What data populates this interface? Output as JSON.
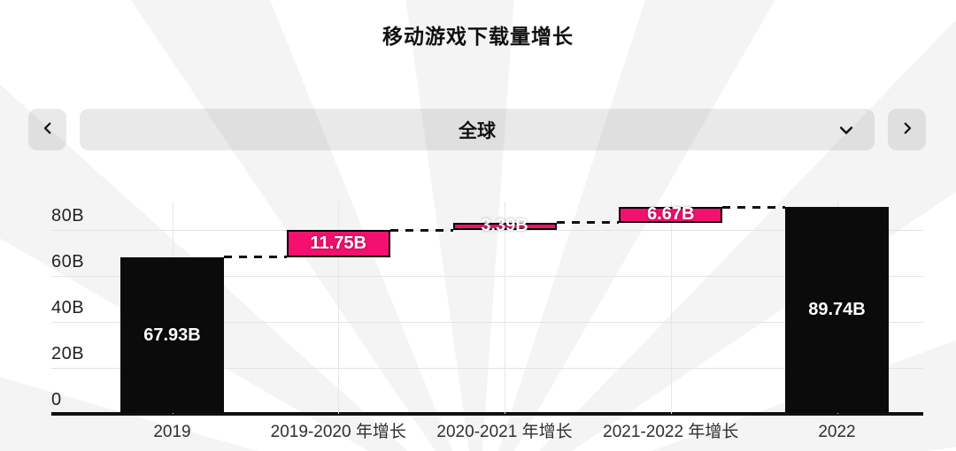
{
  "title": "移动游戏下载量增长",
  "selector": {
    "value": "全球",
    "prev_icon": "chevron-left",
    "next_icon": "chevron-right",
    "dropdown_icon": "chevron-down"
  },
  "chart_data": {
    "type": "bar",
    "subtype": "waterfall",
    "title": "移动游戏下载量增长",
    "unit": "B",
    "ylim": [
      0,
      92
    ],
    "grid": true,
    "legend": "none",
    "yticks": [
      {
        "value": 0,
        "label": "0"
      },
      {
        "value": 20,
        "label": "20B"
      },
      {
        "value": 40,
        "label": "40B"
      },
      {
        "value": 60,
        "label": "60B"
      },
      {
        "value": 80,
        "label": "80B"
      }
    ],
    "categories": [
      "2019",
      "2019-2020 年增长",
      "2020-2021 年增长",
      "2021-2022 年增长",
      "2022"
    ],
    "columns": [
      {
        "category": "2019",
        "kind": "total",
        "value": 67.93,
        "label": "67.93B"
      },
      {
        "category": "2019-2020 年增长",
        "kind": "delta",
        "value": 11.75,
        "label": "11.75B"
      },
      {
        "category": "2020-2021 年增长",
        "kind": "delta",
        "value": 3.39,
        "label": "3.39B"
      },
      {
        "category": "2021-2022 年增长",
        "kind": "delta",
        "value": 6.67,
        "label": "6.67B"
      },
      {
        "category": "2022",
        "kind": "total",
        "value": 89.74,
        "label": "89.74B"
      }
    ],
    "colors": {
      "total_bar": "#0b0b0b",
      "delta_bar": "#f4106e",
      "delta_border": "#000000",
      "grid_line": "#e3e3e3",
      "axis_line": "#111111",
      "connector": "#111111",
      "tick_text": "#222222",
      "bar_text": "#ffffff"
    }
  }
}
